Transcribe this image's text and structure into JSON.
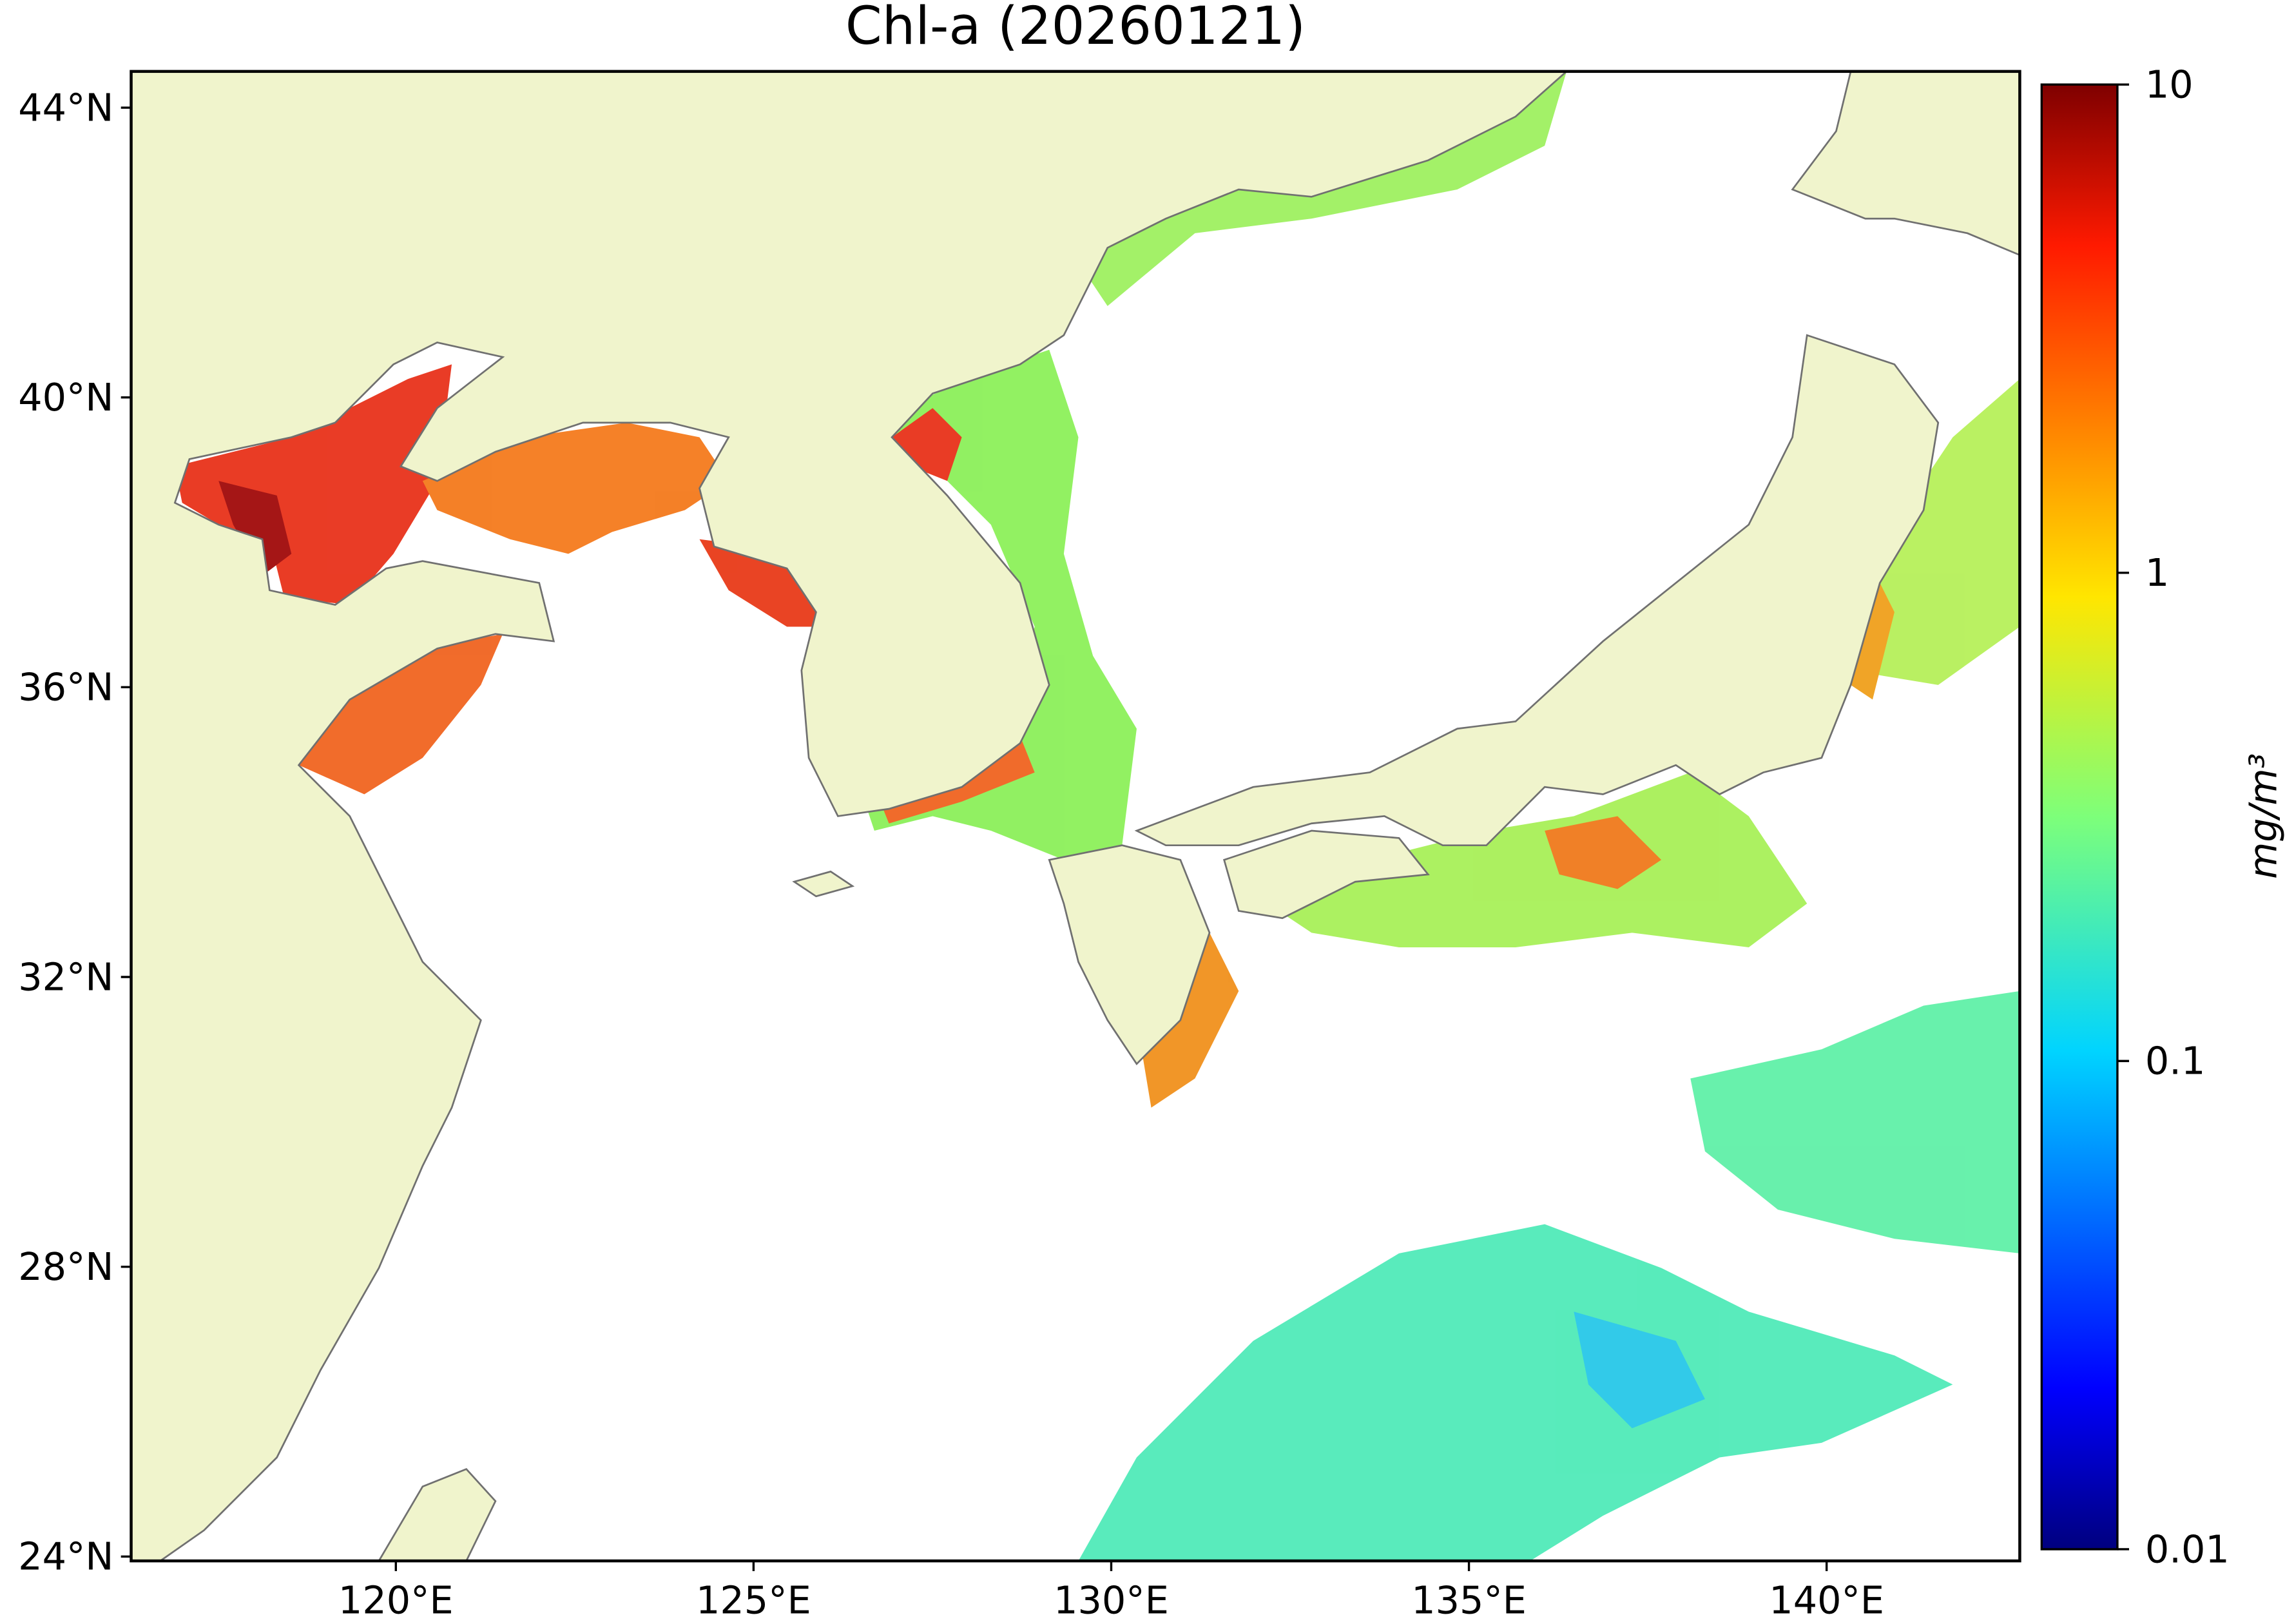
{
  "title": "Chl-a (20260121)",
  "map": {
    "xlim": [
      116.3,
      142.7
    ],
    "ylim": [
      23.94,
      44.5
    ],
    "xticks": [
      {
        "value": 120,
        "label": "120°E"
      },
      {
        "value": 125,
        "label": "125°E"
      },
      {
        "value": 130,
        "label": "130°E"
      },
      {
        "value": 135,
        "label": "135°E"
      },
      {
        "value": 140,
        "label": "140°E"
      }
    ],
    "yticks": [
      {
        "value": 24,
        "label": "24°N"
      },
      {
        "value": 28,
        "label": "28°N"
      },
      {
        "value": 32,
        "label": "32°N"
      },
      {
        "value": 36,
        "label": "36°N"
      },
      {
        "value": 40,
        "label": "40°N"
      },
      {
        "value": 44,
        "label": "44°N"
      }
    ]
  },
  "colorbar": {
    "label": "mg/m³",
    "log": true,
    "lim": [
      0.01,
      10
    ],
    "ticks": [
      0.01,
      0.1,
      1,
      10
    ]
  }
}
